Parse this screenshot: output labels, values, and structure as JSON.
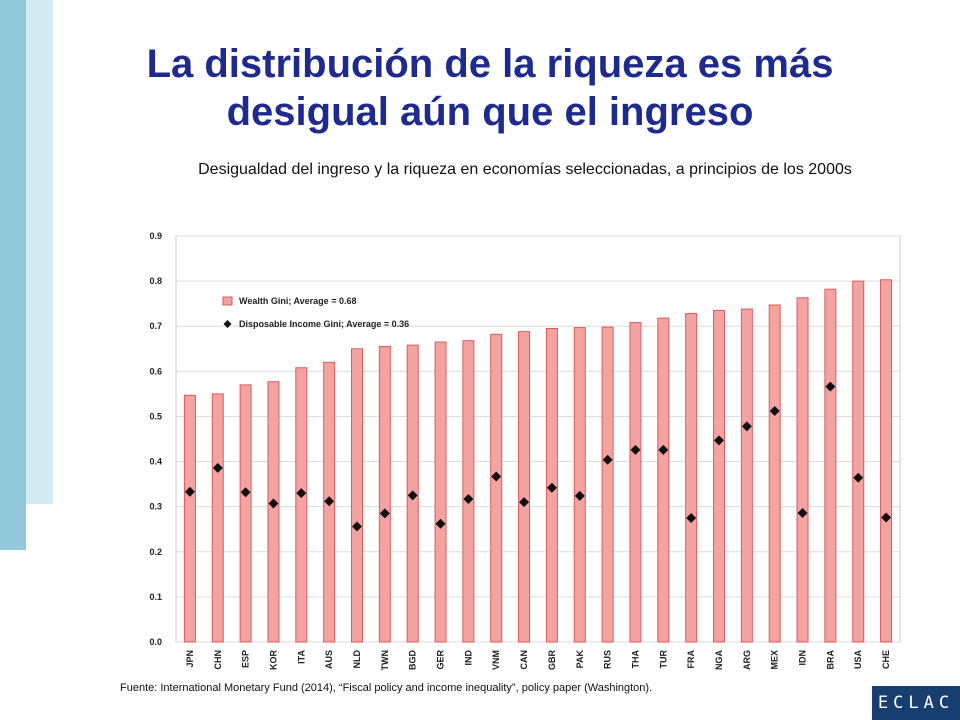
{
  "slide": {
    "title": "La distribución de la riqueza es más desigual aún que el ingreso",
    "subtitle": "Desigualdad del ingreso y la riqueza en economías seleccionadas, a principios de los 2000s",
    "source": "Fuente:   International  Monetary Fund (2014),  “Fiscal policy and income inequality”, policy paper (Washington).",
    "logo": "ECLAC"
  },
  "colors": {
    "title": "#1f2a8e",
    "band_dark": "#91c9da",
    "band_light": "#d3ebf2",
    "bar_fill": "#f4a3a3",
    "bar_edge": "#e05a5a",
    "marker": "#111111",
    "logo_bg": "#173e6e"
  },
  "chart_data": {
    "type": "bar",
    "title": "Desigualdad del ingreso y la riqueza en economías seleccionadas, a principios de los 2000s",
    "xlabel": "",
    "ylabel": "",
    "ylim": [
      0,
      0.9
    ],
    "yticks": [
      "0.0",
      "0.1",
      "0.2",
      "0.3",
      "0.4",
      "0.5",
      "0.6",
      "0.7",
      "0.8",
      "0.9"
    ],
    "grid": true,
    "legend_position": "top-left",
    "categories": [
      "JPN",
      "CHN",
      "ESP",
      "KOR",
      "ITA",
      "AUS",
      "NLD",
      "TWN",
      "BGD",
      "GER",
      "IND",
      "VNM",
      "CAN",
      "GBR",
      "PAK",
      "RUS",
      "THA",
      "TUR",
      "FRA",
      "NGA",
      "ARG",
      "MEX",
      "IDN",
      "BRA",
      "USA",
      "CHE"
    ],
    "series": [
      {
        "name": "Wealth Gini; Average = 0.68",
        "kind": "bar",
        "values": [
          0.547,
          0.55,
          0.57,
          0.577,
          0.608,
          0.62,
          0.65,
          0.655,
          0.658,
          0.665,
          0.668,
          0.682,
          0.688,
          0.695,
          0.697,
          0.698,
          0.708,
          0.718,
          0.728,
          0.735,
          0.738,
          0.747,
          0.763,
          0.782,
          0.8,
          0.803
        ]
      },
      {
        "name": "Disposable Income Gini; Average = 0.36",
        "kind": "marker",
        "values": [
          0.333,
          0.386,
          0.332,
          0.307,
          0.33,
          0.312,
          0.256,
          0.285,
          0.325,
          0.262,
          0.317,
          0.367,
          0.31,
          0.342,
          0.324,
          0.404,
          0.426,
          0.426,
          0.275,
          0.447,
          0.478,
          0.512,
          0.286,
          0.566,
          0.364,
          0.276
        ]
      }
    ]
  }
}
